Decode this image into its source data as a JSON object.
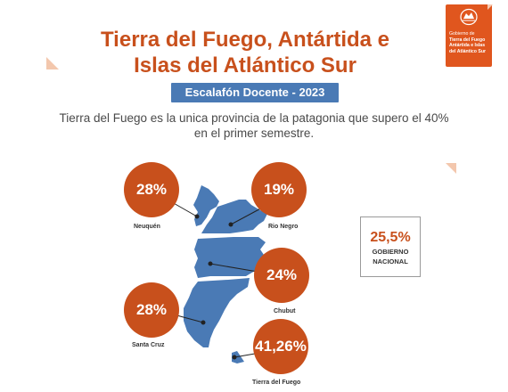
{
  "header": {
    "title_line1": "Tierra del Fuego, Antártida e",
    "title_line2": "Islas del Atlántico Sur"
  },
  "logo": {
    "line1": "Gobierno de",
    "line2": "Tierra del Fuego",
    "line3": "Antártida e Islas",
    "line4": "del Atlántico Sur",
    "icon": "provincial-seal-icon"
  },
  "badge": {
    "label": "Escalafón Docente - 2023"
  },
  "subtitle": {
    "line1": "Tierra del Fuego es la unica provincia de la patagonia que supero el 40%",
    "line2": "en el primer semestre."
  },
  "provinces": [
    {
      "name": "Neuquén",
      "value": "28%"
    },
    {
      "name": "Rio Negro",
      "value": "19%"
    },
    {
      "name": "Chubut",
      "value": "24%"
    },
    {
      "name": "Santa Cruz",
      "value": "28%"
    },
    {
      "name": "Tierra del Fuego",
      "value": "41,26%"
    }
  ],
  "national": {
    "value": "25,5%",
    "label_line1": "GOBIERNO",
    "label_line2": "NACIONAL"
  },
  "colors": {
    "accent": "#c8501c",
    "map": "#4a7ab5",
    "badge": "#4a7ab5"
  }
}
